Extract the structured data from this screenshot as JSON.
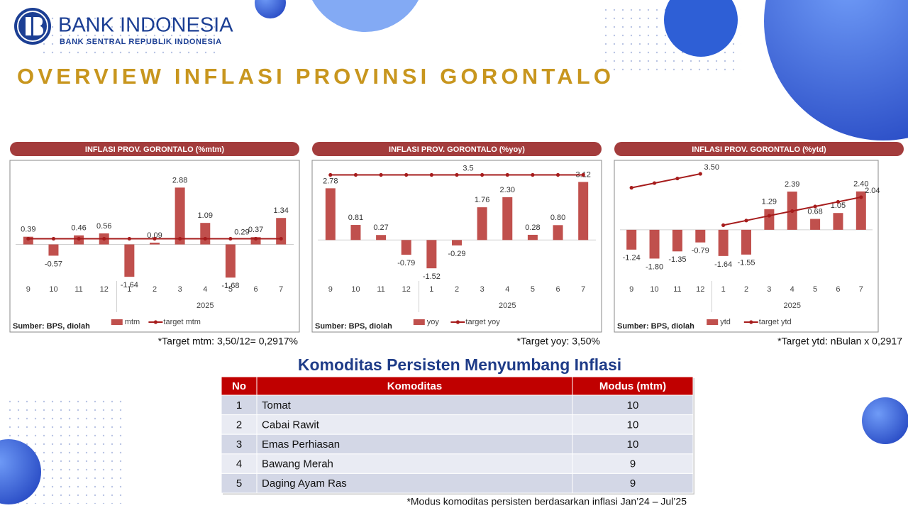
{
  "header": {
    "logo_name": "BANK INDONESIA",
    "logo_subtitle": "BANK SENTRAL REPUBLIK INDONESIA",
    "title": "OVERVIEW INFLASI PROVINSI GORONTALO"
  },
  "chart_data": [
    {
      "type": "bar",
      "title": "INFLASI PROV. GORONTALO (%mtm)",
      "categories": [
        "9",
        "10",
        "11",
        "12",
        "1",
        "2",
        "3",
        "4",
        "5",
        "6",
        "7"
      ],
      "x_group_label": "2025",
      "ylim": [
        -1.85,
        3.9
      ],
      "series": [
        {
          "name": "mtm",
          "type": "bar",
          "color": "#c0504d",
          "values": [
            0.39,
            -0.57,
            0.46,
            0.56,
            -1.64,
            0.09,
            2.88,
            1.09,
            -1.68,
            0.37,
            1.34
          ],
          "value_labels": [
            "0.39",
            "-0.57",
            "0.46",
            "0.56",
            "-1.64",
            "0.09",
            "2.88",
            "1.09",
            "-1.68",
            "0.37",
            "1.34"
          ]
        },
        {
          "name": "target mtm",
          "type": "line",
          "color": "#a61c1c",
          "values": [
            0.29,
            0.29,
            0.29,
            0.29,
            0.29,
            0.29,
            0.29,
            0.29,
            0.29,
            0.29,
            0.29
          ],
          "value_labels": [
            null,
            null,
            null,
            null,
            null,
            null,
            null,
            null,
            "0.29",
            null,
            null
          ]
        }
      ],
      "legend": "bottom",
      "source": "Sumber: BPS, diolah",
      "note": "*Target mtm: 3,50/12= 0,2917%"
    },
    {
      "type": "bar",
      "title": "INFLASI PROV. GORONTALO (%yoy)",
      "categories": [
        "9",
        "10",
        "11",
        "12",
        "1",
        "2",
        "3",
        "4",
        "5",
        "6",
        "7"
      ],
      "x_group_label": "2025",
      "ylim": [
        -2.2,
        3.9
      ],
      "series": [
        {
          "name": "yoy",
          "type": "bar",
          "color": "#c0504d",
          "values": [
            2.78,
            0.81,
            0.27,
            -0.79,
            -1.52,
            -0.29,
            1.76,
            2.3,
            0.28,
            0.8,
            3.12
          ],
          "value_labels": [
            "2.78",
            "0.81",
            "0.27",
            "-0.79",
            "-1.52",
            "-0.29",
            "1.76",
            "2.30",
            "0.28",
            "0.80",
            "3.12"
          ]
        },
        {
          "name": "target yoy",
          "type": "line",
          "color": "#a61c1c",
          "values": [
            3.5,
            3.5,
            3.5,
            3.5,
            3.5,
            3.5,
            3.5,
            3.5,
            3.5,
            3.5,
            3.5
          ],
          "value_labels": [
            null,
            null,
            null,
            null,
            null,
            "3.5",
            null,
            null,
            null,
            null,
            null
          ]
        }
      ],
      "legend": "bottom",
      "source": "Sumber: BPS, diolah",
      "note": "*Target yoy: 3,50%"
    },
    {
      "type": "bar",
      "title": "INFLASI PROV. GORONTALO (%ytd)",
      "categories": [
        "9",
        "10",
        "11",
        "12",
        "1",
        "2",
        "3",
        "4",
        "5",
        "6",
        "7"
      ],
      "x_group_label": "2025",
      "ylim": [
        -3.2,
        3.9
      ],
      "series": [
        {
          "name": "ytd",
          "type": "bar",
          "color": "#c0504d",
          "values": [
            -1.24,
            -1.8,
            -1.35,
            -0.79,
            -1.64,
            -1.55,
            1.29,
            2.39,
            0.68,
            1.05,
            2.4
          ],
          "value_labels": [
            "-1.24",
            "-1.80",
            "-1.35",
            "-0.79",
            "-1.64",
            "-1.55",
            "1.29",
            "2.39",
            "0.68",
            "1.05",
            "2.40"
          ]
        },
        {
          "name": "target ytd",
          "type": "line",
          "color": "#a61c1c",
          "values": [
            2.63,
            2.92,
            3.21,
            3.5,
            0.29,
            0.58,
            0.88,
            1.17,
            1.46,
            1.75,
            2.04
          ],
          "value_labels": [
            null,
            null,
            null,
            "3.50",
            null,
            null,
            null,
            null,
            null,
            null,
            "2.04"
          ]
        }
      ],
      "legend": "bottom",
      "source": "Sumber: BPS, diolah",
      "note": "*Target ytd: nBulan x 0,2917"
    }
  ],
  "table": {
    "title": "Komoditas Persisten Menyumbang Inflasi",
    "headers": [
      "No",
      "Komoditas",
      "Modus (mtm)"
    ],
    "rows": [
      [
        1,
        "Tomat",
        10
      ],
      [
        2,
        "Cabai Rawit",
        10
      ],
      [
        3,
        "Emas Perhiasan",
        10
      ],
      [
        4,
        "Bawang Merah",
        9
      ],
      [
        5,
        "Daging Ayam Ras",
        9
      ]
    ],
    "footnote": "*Modus komoditas persisten berdasarkan inflasi Jan’24 – Jul’25"
  }
}
